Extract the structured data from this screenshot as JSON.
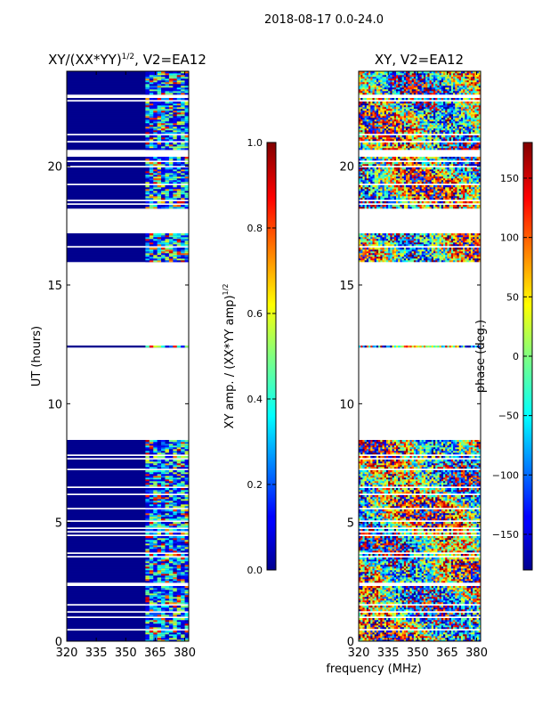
{
  "figure_title": "2018-08-17 0.0-24.0",
  "shared_xlabel": "frequency (MHz)",
  "colors": {
    "background": "#ffffff",
    "axis": "#000000",
    "low": "#00008f",
    "high": "#800000"
  },
  "chart_data": [
    {
      "type": "heatmap",
      "title_main": "XY/(XX*YY)",
      "title_sup": "1/2",
      "title_rest": ", V2=EA12",
      "xlabel": "frequency (MHz)",
      "ylabel": "UT (hours)",
      "xlim": [
        320,
        382
      ],
      "ylim": [
        0,
        24
      ],
      "xticks": [
        320,
        335,
        350,
        365,
        380
      ],
      "yticks": [
        0,
        5,
        10,
        15,
        20
      ],
      "colorbar": {
        "label_main": "XY amp. / (XX*YY amp)",
        "label_sup": "1/2",
        "range": [
          0.0,
          1.0
        ],
        "ticks": [
          0.0,
          0.2,
          0.4,
          0.6,
          0.8,
          1.0
        ],
        "tick_labels": [
          "0.0",
          "0.2",
          "0.4",
          "0.6",
          "0.8",
          "1.0"
        ]
      },
      "data_time_ranges_hours": [
        [
          0.0,
          8.5
        ],
        [
          12.4,
          12.5
        ],
        [
          16.0,
          17.2
        ],
        [
          18.2,
          24.0
        ]
      ],
      "active_frequency_range_mhz": [
        361,
        382
      ],
      "value_note": "background near 0.0; active channels 0.2-0.6 with sparse peaks near 0.9"
    },
    {
      "type": "heatmap",
      "title": "XY, V2=EA12",
      "xlabel": "frequency (MHz)",
      "ylabel": "",
      "xlim": [
        320,
        382
      ],
      "ylim": [
        0,
        24
      ],
      "xticks": [
        320,
        335,
        350,
        365,
        380
      ],
      "yticks": [
        0,
        5,
        10,
        15,
        20
      ],
      "colorbar": {
        "label": "phase (deg.)",
        "range": [
          -180,
          180
        ],
        "ticks": [
          -150,
          -100,
          -50,
          0,
          50,
          100,
          150
        ],
        "tick_labels": [
          "−150",
          "−100",
          "−50",
          "0",
          "50",
          "100",
          "150"
        ]
      },
      "data_time_ranges_hours": [
        [
          0.0,
          8.5
        ],
        [
          12.4,
          12.5
        ],
        [
          16.0,
          17.2
        ],
        [
          18.2,
          24.0
        ]
      ],
      "value_note": "phase spans full -180..180 range, noisy in all data blocks"
    }
  ]
}
